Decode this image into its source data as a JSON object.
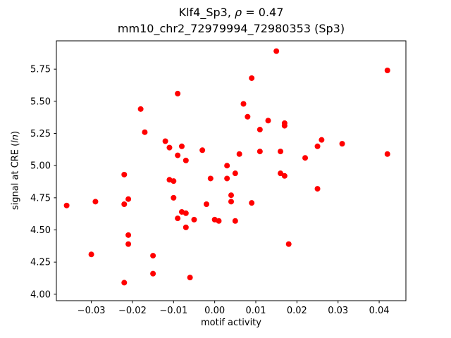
{
  "figure": {
    "title_parts": {
      "pre": "Klf4_Sp3, ",
      "rho": "ρ",
      "post": " = 0.47"
    },
    "ylabel_parts": {
      "pre": "signal at CRE (",
      "italic": "ln",
      "post": ")"
    }
  },
  "chart_data": {
    "type": "scatter",
    "title": "Klf4_Sp3, ρ = 0.47",
    "subtitle": "mm10_chr2_72979994_72980353 (Sp3)",
    "xlabel": "motif activity",
    "ylabel": "signal at CRE (ln)",
    "marker_color": "#ff0000",
    "grid": false,
    "legend": "none",
    "xlim": [
      -0.0385,
      0.0465
    ],
    "ylim": [
      3.95,
      5.97
    ],
    "xticks": [
      {
        "v": -0.03,
        "label": "−0.03"
      },
      {
        "v": -0.02,
        "label": "−0.02"
      },
      {
        "v": -0.01,
        "label": "−0.01"
      },
      {
        "v": 0.0,
        "label": "0.00"
      },
      {
        "v": 0.01,
        "label": "0.01"
      },
      {
        "v": 0.02,
        "label": "0.02"
      },
      {
        "v": 0.03,
        "label": "0.03"
      },
      {
        "v": 0.04,
        "label": "0.04"
      }
    ],
    "yticks": [
      {
        "v": 4.0,
        "label": "4.00"
      },
      {
        "v": 4.25,
        "label": "4.25"
      },
      {
        "v": 4.5,
        "label": "4.50"
      },
      {
        "v": 4.75,
        "label": "4.75"
      },
      {
        "v": 5.0,
        "label": "5.00"
      },
      {
        "v": 5.25,
        "label": "5.25"
      },
      {
        "v": 5.5,
        "label": "5.50"
      },
      {
        "v": 5.75,
        "label": "5.75"
      }
    ],
    "points": [
      [
        -0.036,
        4.69
      ],
      [
        -0.03,
        4.31
      ],
      [
        -0.029,
        4.72
      ],
      [
        -0.022,
        4.93
      ],
      [
        -0.022,
        4.7
      ],
      [
        -0.022,
        4.09
      ],
      [
        -0.021,
        4.74
      ],
      [
        -0.021,
        4.46
      ],
      [
        -0.021,
        4.39
      ],
      [
        -0.018,
        5.44
      ],
      [
        -0.017,
        5.26
      ],
      [
        -0.015,
        4.3
      ],
      [
        -0.015,
        4.16
      ],
      [
        -0.012,
        5.19
      ],
      [
        -0.011,
        5.14
      ],
      [
        -0.011,
        4.89
      ],
      [
        -0.01,
        4.88
      ],
      [
        -0.01,
        4.75
      ],
      [
        -0.009,
        5.56
      ],
      [
        -0.009,
        5.08
      ],
      [
        -0.009,
        4.59
      ],
      [
        -0.008,
        5.15
      ],
      [
        -0.008,
        4.64
      ],
      [
        -0.007,
        5.04
      ],
      [
        -0.007,
        4.63
      ],
      [
        -0.007,
        4.52
      ],
      [
        -0.006,
        4.13
      ],
      [
        -0.005,
        4.58
      ],
      [
        -0.003,
        5.12
      ],
      [
        -0.002,
        4.7
      ],
      [
        -0.001,
        4.9
      ],
      [
        0.0,
        4.58
      ],
      [
        0.001,
        4.57
      ],
      [
        0.003,
        5.0
      ],
      [
        0.003,
        4.9
      ],
      [
        0.004,
        4.77
      ],
      [
        0.004,
        4.72
      ],
      [
        0.005,
        4.94
      ],
      [
        0.005,
        4.57
      ],
      [
        0.006,
        5.09
      ],
      [
        0.007,
        5.48
      ],
      [
        0.008,
        5.38
      ],
      [
        0.009,
        5.68
      ],
      [
        0.009,
        4.71
      ],
      [
        0.011,
        5.28
      ],
      [
        0.011,
        5.11
      ],
      [
        0.013,
        5.35
      ],
      [
        0.015,
        5.89
      ],
      [
        0.016,
        5.11
      ],
      [
        0.016,
        4.94
      ],
      [
        0.017,
        5.33
      ],
      [
        0.017,
        5.31
      ],
      [
        0.017,
        4.92
      ],
      [
        0.018,
        4.39
      ],
      [
        0.022,
        5.06
      ],
      [
        0.025,
        4.82
      ],
      [
        0.025,
        5.15
      ],
      [
        0.026,
        5.2
      ],
      [
        0.031,
        5.17
      ],
      [
        0.042,
        5.74
      ],
      [
        0.042,
        5.09
      ]
    ]
  }
}
